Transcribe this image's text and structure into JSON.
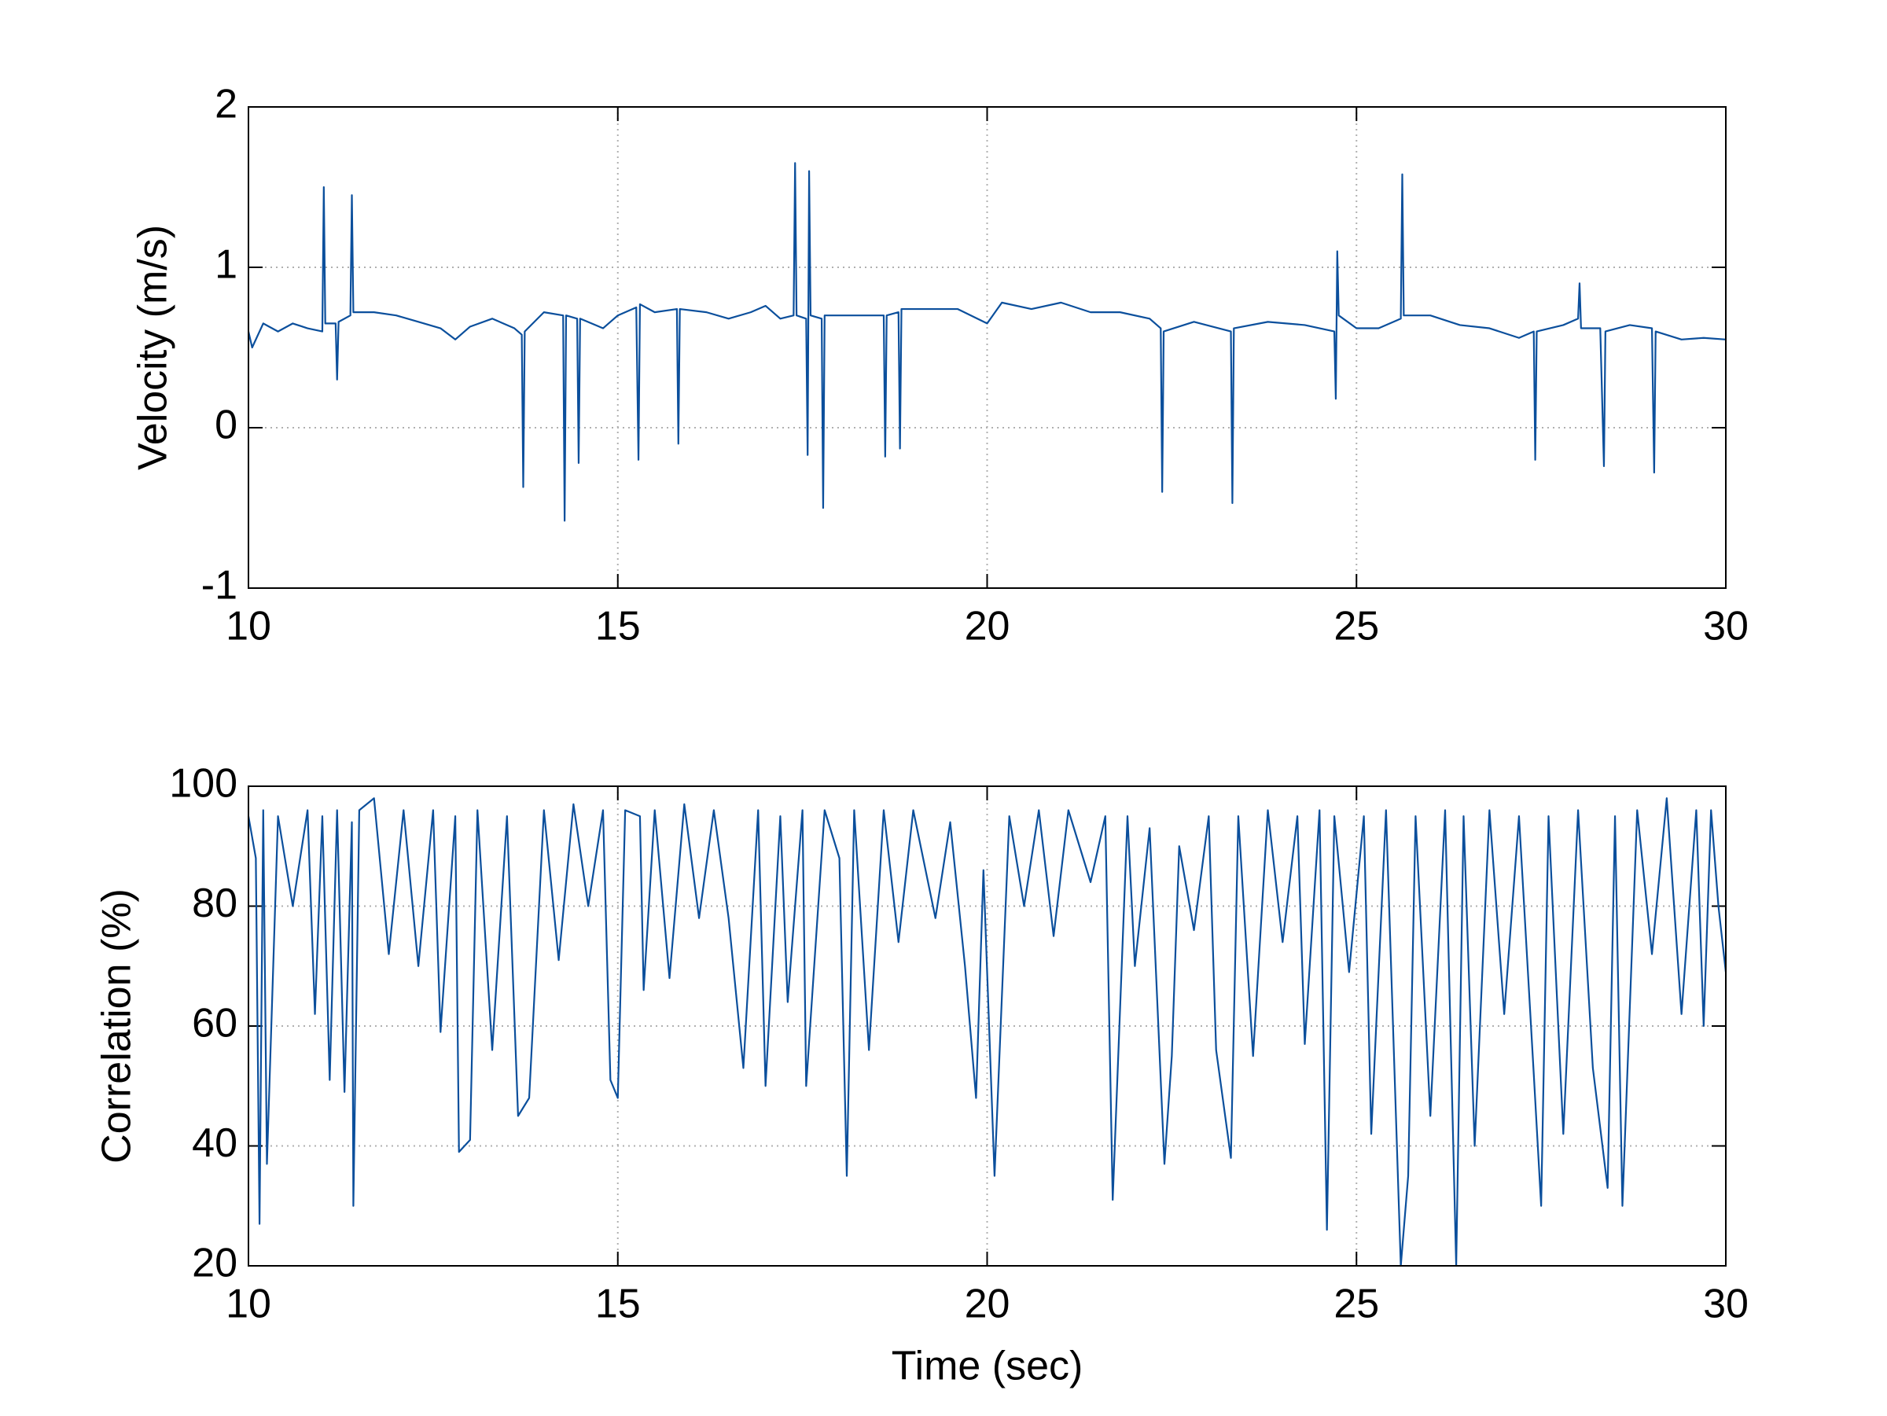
{
  "chart_data": [
    {
      "type": "line",
      "ylabel": "Velocity (m/s)",
      "grid": true,
      "xlim": [
        10,
        30
      ],
      "xticks": [
        10,
        15,
        20,
        25,
        30
      ],
      "ylim": [
        -1,
        2
      ],
      "yticks": [
        -1,
        0,
        1,
        2
      ],
      "x": [
        10.0,
        10.05,
        10.2,
        10.4,
        10.6,
        10.8,
        11.0,
        11.02,
        11.04,
        11.18,
        11.2,
        11.22,
        11.38,
        11.4,
        11.42,
        11.7,
        12.0,
        12.3,
        12.6,
        12.8,
        13.0,
        13.3,
        13.6,
        13.7,
        13.72,
        13.74,
        14.0,
        14.26,
        14.28,
        14.3,
        14.45,
        14.47,
        14.49,
        14.8,
        15.0,
        15.25,
        15.28,
        15.3,
        15.5,
        15.8,
        15.82,
        15.84,
        16.2,
        16.5,
        16.8,
        17.0,
        17.2,
        17.38,
        17.4,
        17.42,
        17.55,
        17.57,
        17.59,
        17.61,
        17.76,
        17.78,
        17.8,
        18.2,
        18.6,
        18.62,
        18.64,
        18.8,
        18.82,
        18.84,
        19.2,
        19.6,
        20.0,
        20.2,
        20.6,
        21.0,
        21.4,
        21.8,
        22.2,
        22.35,
        22.37,
        22.39,
        22.8,
        23.3,
        23.32,
        23.34,
        23.8,
        24.3,
        24.7,
        24.72,
        24.74,
        24.76,
        25.0,
        25.3,
        25.6,
        25.62,
        25.64,
        26.0,
        26.4,
        26.8,
        27.2,
        27.4,
        27.42,
        27.44,
        27.8,
        28.0,
        28.02,
        28.04,
        28.3,
        28.35,
        28.37,
        28.7,
        29.0,
        29.03,
        29.05,
        29.4,
        29.7,
        30.0
      ],
      "series": [
        {
          "color": "#0b4f9c",
          "values": [
            0.6,
            0.5,
            0.65,
            0.6,
            0.65,
            0.62,
            0.6,
            1.5,
            0.65,
            0.65,
            0.3,
            0.66,
            0.7,
            1.45,
            0.72,
            0.72,
            0.7,
            0.66,
            0.62,
            0.55,
            0.63,
            0.68,
            0.62,
            0.58,
            -0.37,
            0.6,
            0.72,
            0.7,
            -0.58,
            0.7,
            0.68,
            -0.22,
            0.68,
            0.62,
            0.7,
            0.75,
            -0.2,
            0.77,
            0.72,
            0.74,
            -0.1,
            0.74,
            0.72,
            0.68,
            0.72,
            0.76,
            0.68,
            0.7,
            1.65,
            0.7,
            0.68,
            -0.17,
            1.6,
            0.7,
            0.68,
            -0.5,
            0.7,
            0.7,
            0.7,
            -0.18,
            0.7,
            0.72,
            -0.13,
            0.74,
            0.74,
            0.74,
            0.65,
            0.78,
            0.74,
            0.78,
            0.72,
            0.72,
            0.68,
            0.62,
            -0.4,
            0.6,
            0.66,
            0.6,
            -0.47,
            0.62,
            0.66,
            0.64,
            0.6,
            0.18,
            1.1,
            0.7,
            0.62,
            0.62,
            0.68,
            1.58,
            0.7,
            0.7,
            0.64,
            0.62,
            0.56,
            0.6,
            -0.2,
            0.6,
            0.64,
            0.68,
            0.9,
            0.62,
            0.62,
            -0.24,
            0.6,
            0.64,
            0.62,
            -0.28,
            0.6,
            0.55,
            0.56,
            0.55
          ]
        }
      ]
    },
    {
      "type": "line",
      "ylabel": "Correlation (%)",
      "xlabel": "Time (sec)",
      "grid": true,
      "xlim": [
        10,
        30
      ],
      "xticks": [
        10,
        15,
        20,
        25,
        30
      ],
      "ylim": [
        20,
        100
      ],
      "yticks": [
        20,
        40,
        60,
        80,
        100
      ],
      "x": [
        10.0,
        10.1,
        10.15,
        10.2,
        10.25,
        10.4,
        10.6,
        10.8,
        10.9,
        11.0,
        11.1,
        11.2,
        11.3,
        11.4,
        11.42,
        11.5,
        11.7,
        11.9,
        12.1,
        12.3,
        12.5,
        12.6,
        12.8,
        12.85,
        13.0,
        13.1,
        13.3,
        13.5,
        13.65,
        13.8,
        14.0,
        14.2,
        14.4,
        14.6,
        14.8,
        14.9,
        15.0,
        15.1,
        15.3,
        15.35,
        15.5,
        15.7,
        15.9,
        16.1,
        16.3,
        16.5,
        16.7,
        16.9,
        17.0,
        17.2,
        17.3,
        17.5,
        17.55,
        17.8,
        18.0,
        18.1,
        18.2,
        18.4,
        18.6,
        18.8,
        19.0,
        19.3,
        19.5,
        19.7,
        19.85,
        19.95,
        20.1,
        20.3,
        20.5,
        20.7,
        20.9,
        21.1,
        21.4,
        21.6,
        21.7,
        21.9,
        22.0,
        22.2,
        22.4,
        22.5,
        22.6,
        22.8,
        23.0,
        23.1,
        23.3,
        23.4,
        23.6,
        23.8,
        24.0,
        24.2,
        24.3,
        24.5,
        24.6,
        24.7,
        24.9,
        25.1,
        25.2,
        25.4,
        25.6,
        25.7,
        25.8,
        26.0,
        26.2,
        26.35,
        26.45,
        26.6,
        26.8,
        27.0,
        27.2,
        27.4,
        27.5,
        27.6,
        27.8,
        28.0,
        28.2,
        28.4,
        28.5,
        28.6,
        28.8,
        29.0,
        29.2,
        29.4,
        29.6,
        29.7,
        29.8,
        29.9,
        30.0
      ],
      "series": [
        {
          "color": "#0b4f9c",
          "values": [
            95,
            88,
            27,
            96,
            37,
            95,
            80,
            96,
            62,
            95,
            51,
            96,
            49,
            94,
            30,
            96,
            98,
            72,
            96,
            70,
            96,
            59,
            95,
            39,
            41,
            96,
            56,
            95,
            45,
            48,
            96,
            71,
            97,
            80,
            96,
            51,
            48,
            96,
            95,
            66,
            96,
            68,
            97,
            78,
            96,
            78,
            53,
            96,
            50,
            95,
            64,
            96,
            50,
            96,
            88,
            35,
            96,
            56,
            96,
            74,
            96,
            78,
            94,
            70,
            48,
            86,
            35,
            95,
            80,
            96,
            75,
            96,
            84,
            95,
            31,
            95,
            70,
            93,
            37,
            55,
            90,
            76,
            95,
            56,
            38,
            95,
            55,
            96,
            74,
            95,
            57,
            96,
            26,
            95,
            69,
            95,
            42,
            96,
            20,
            35,
            95,
            45,
            96,
            20,
            95,
            40,
            96,
            62,
            95,
            52,
            30,
            95,
            42,
            96,
            53,
            33,
            95,
            30,
            96,
            72,
            98,
            62,
            96,
            60,
            96,
            80,
            69
          ]
        }
      ]
    }
  ]
}
